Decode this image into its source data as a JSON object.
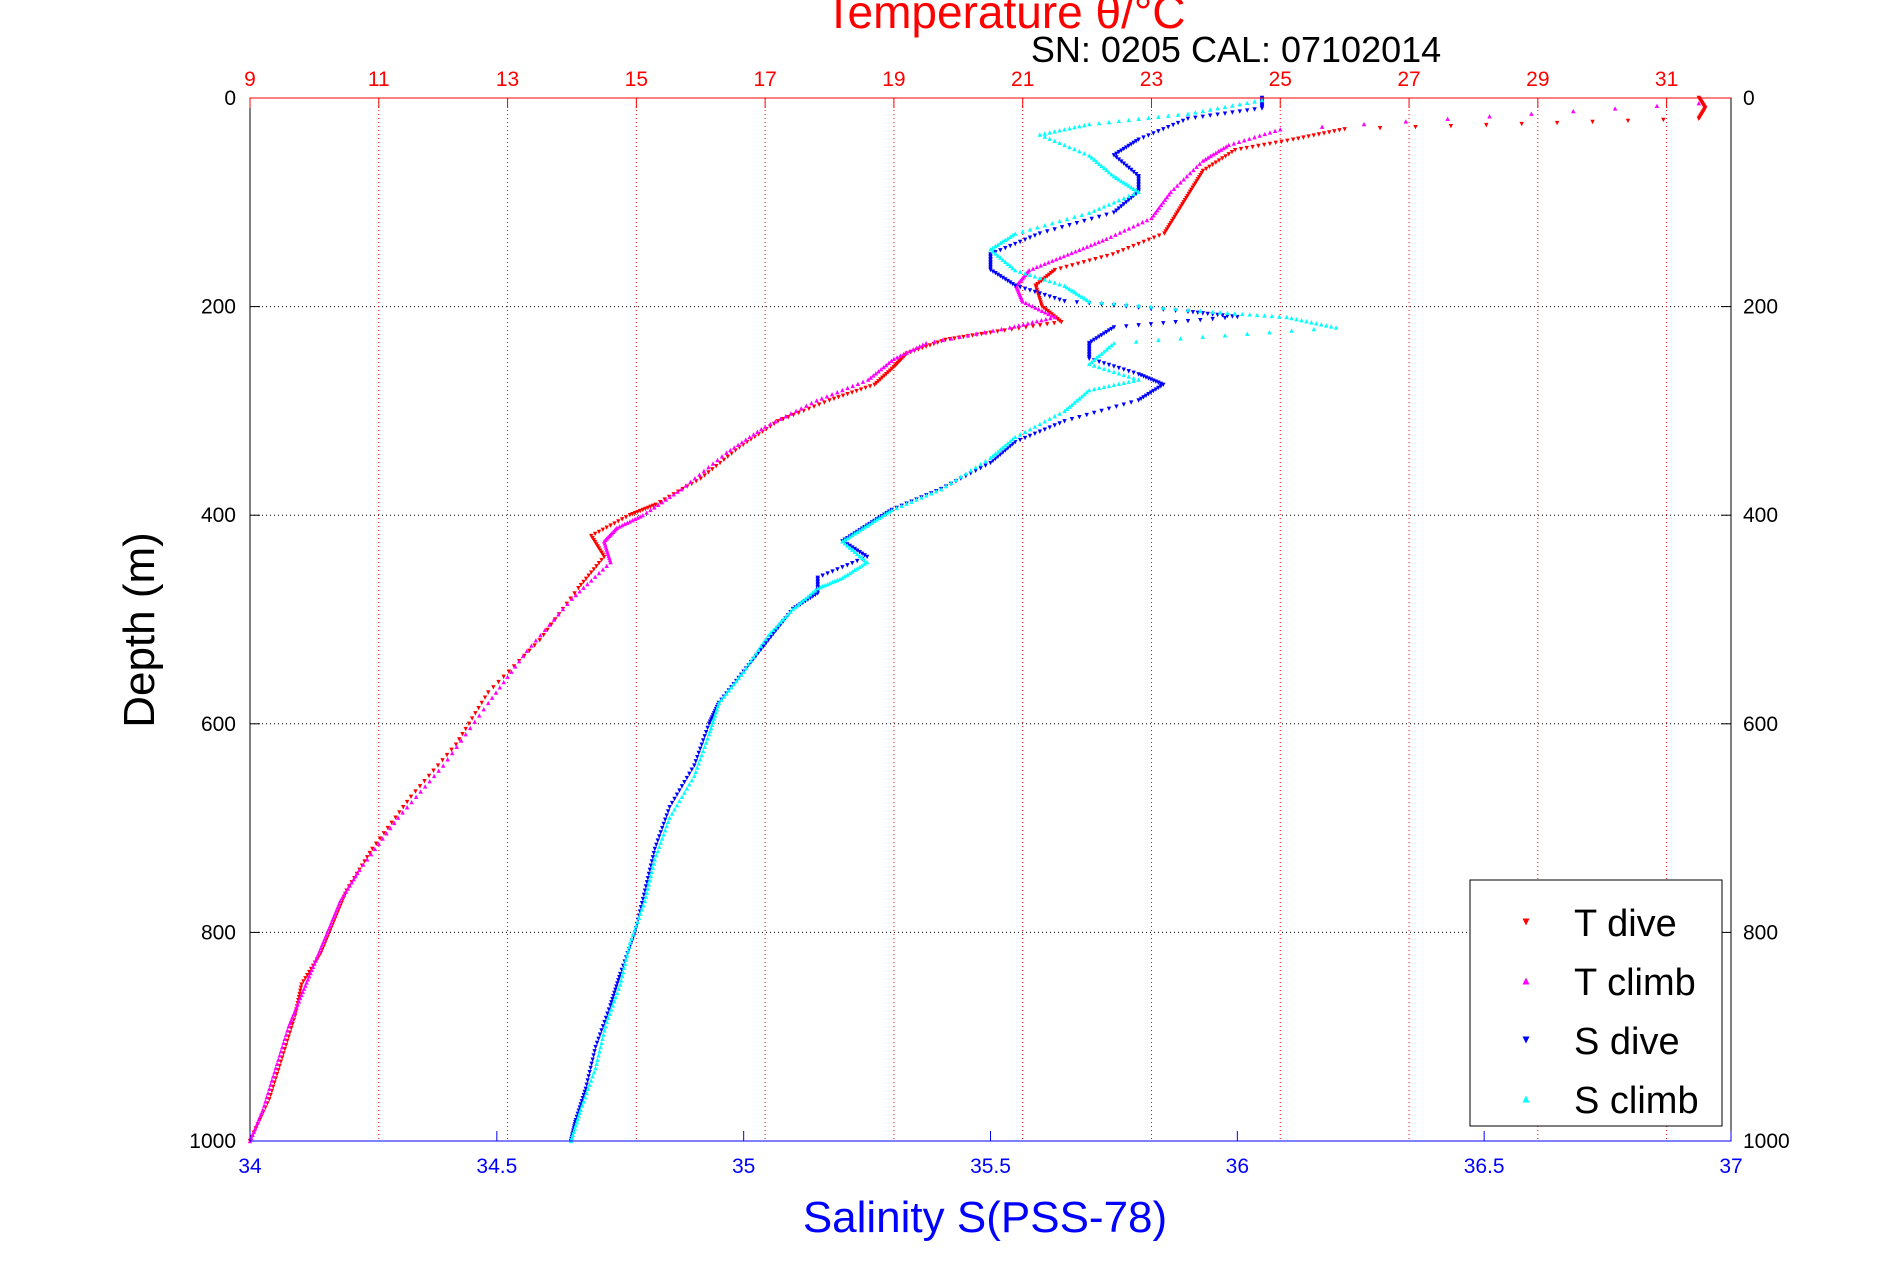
{
  "chart_data": {
    "type": "scatter",
    "title": "Temperature θ/°C",
    "subtitle": "SN: 0205  CAL: 07102014",
    "ylabel": "Depth (m)",
    "xlabel_bottom": "Salinity S(PSS-78)",
    "y_axis": {
      "min": 0,
      "max": 1000,
      "reversed": true,
      "ticks": [
        0,
        200,
        400,
        600,
        800,
        1000
      ]
    },
    "x_bottom": {
      "label": "Salinity S(PSS-78)",
      "min": 34,
      "max": 37,
      "ticks": [
        "34",
        "34.5",
        "35",
        "35.5",
        "36",
        "36.5",
        "37"
      ],
      "color": "#0000ff"
    },
    "x_top": {
      "label": "Temperature θ/°C",
      "min": 9,
      "max": 32,
      "ticks": [
        "9",
        "11",
        "13",
        "15",
        "17",
        "19",
        "21",
        "23",
        "25",
        "27",
        "29",
        "31"
      ],
      "color": "#ff0000"
    },
    "grid": true,
    "legend_position": "bottom-right",
    "series": [
      {
        "name": "T dive",
        "axis": "top",
        "color": "#ff0000",
        "marker": "triangle-down",
        "points": [
          [
            31.5,
            0
          ],
          [
            31.6,
            10
          ],
          [
            31.5,
            20
          ],
          [
            26.0,
            30
          ],
          [
            25.2,
            40
          ],
          [
            24.3,
            50
          ],
          [
            23.8,
            70
          ],
          [
            23.6,
            90
          ],
          [
            23.4,
            110
          ],
          [
            23.2,
            130
          ],
          [
            22.4,
            150
          ],
          [
            21.5,
            165
          ],
          [
            21.2,
            180
          ],
          [
            21.3,
            200
          ],
          [
            21.6,
            215
          ],
          [
            20.5,
            225
          ],
          [
            19.8,
            232
          ],
          [
            19.2,
            245
          ],
          [
            19.0,
            258
          ],
          [
            18.7,
            275
          ],
          [
            18.0,
            290
          ],
          [
            17.2,
            310
          ],
          [
            16.6,
            335
          ],
          [
            16.0,
            365
          ],
          [
            15.3,
            390
          ],
          [
            14.9,
            400
          ],
          [
            14.3,
            420
          ],
          [
            14.5,
            440
          ],
          [
            14.1,
            470
          ],
          [
            13.5,
            520
          ],
          [
            12.7,
            570
          ],
          [
            12.2,
            620
          ],
          [
            11.5,
            670
          ],
          [
            10.9,
            720
          ],
          [
            10.5,
            760
          ],
          [
            10.3,
            790
          ],
          [
            10.1,
            820
          ],
          [
            9.8,
            850
          ],
          [
            9.7,
            880
          ],
          [
            9.5,
            920
          ],
          [
            9.3,
            960
          ],
          [
            9.0,
            1000
          ]
        ]
      },
      {
        "name": "T climb",
        "axis": "top",
        "color": "#ff00ff",
        "marker": "triangle-up",
        "points": [
          [
            31.5,
            5
          ],
          [
            25.0,
            30
          ],
          [
            24.2,
            45
          ],
          [
            23.8,
            60
          ],
          [
            23.3,
            90
          ],
          [
            23.0,
            115
          ],
          [
            22.3,
            135
          ],
          [
            21.7,
            150
          ],
          [
            21.1,
            165
          ],
          [
            20.9,
            180
          ],
          [
            21.0,
            195
          ],
          [
            21.5,
            210
          ],
          [
            20.8,
            220
          ],
          [
            19.5,
            235
          ],
          [
            19.0,
            250
          ],
          [
            18.6,
            270
          ],
          [
            17.8,
            290
          ],
          [
            17.0,
            315
          ],
          [
            16.4,
            340
          ],
          [
            15.7,
            375
          ],
          [
            15.1,
            400
          ],
          [
            14.7,
            412
          ],
          [
            14.5,
            425
          ],
          [
            14.6,
            445
          ],
          [
            14.0,
            480
          ],
          [
            13.3,
            530
          ],
          [
            12.7,
            580
          ],
          [
            12.0,
            640
          ],
          [
            11.3,
            690
          ],
          [
            10.7,
            740
          ],
          [
            10.4,
            770
          ],
          [
            10.2,
            800
          ],
          [
            10.0,
            830
          ],
          [
            9.8,
            860
          ],
          [
            9.6,
            890
          ],
          [
            9.4,
            930
          ],
          [
            9.2,
            970
          ],
          [
            9.0,
            1000
          ]
        ]
      },
      {
        "name": "S dive",
        "axis": "bottom",
        "color": "#0000ff",
        "marker": "triangle-down",
        "points": [
          [
            36.05,
            0
          ],
          [
            36.05,
            10
          ],
          [
            35.9,
            20
          ],
          [
            35.8,
            40
          ],
          [
            35.75,
            55
          ],
          [
            35.8,
            75
          ],
          [
            35.8,
            90
          ],
          [
            35.75,
            110
          ],
          [
            35.6,
            130
          ],
          [
            35.5,
            150
          ],
          [
            35.5,
            165
          ],
          [
            35.55,
            180
          ],
          [
            35.65,
            195
          ],
          [
            35.9,
            205
          ],
          [
            36.0,
            210
          ],
          [
            35.75,
            220
          ],
          [
            35.7,
            235
          ],
          [
            35.7,
            250
          ],
          [
            35.8,
            265
          ],
          [
            35.85,
            275
          ],
          [
            35.8,
            290
          ],
          [
            35.65,
            310
          ],
          [
            35.55,
            330
          ],
          [
            35.5,
            350
          ],
          [
            35.4,
            375
          ],
          [
            35.3,
            395
          ],
          [
            35.25,
            410
          ],
          [
            35.2,
            425
          ],
          [
            35.25,
            440
          ],
          [
            35.15,
            460
          ],
          [
            35.15,
            475
          ],
          [
            35.1,
            490
          ],
          [
            35.05,
            520
          ],
          [
            35.0,
            550
          ],
          [
            34.95,
            580
          ],
          [
            34.93,
            600
          ],
          [
            34.9,
            640
          ],
          [
            34.85,
            680
          ],
          [
            34.82,
            720
          ],
          [
            34.8,
            760
          ],
          [
            34.78,
            800
          ],
          [
            34.75,
            840
          ],
          [
            34.73,
            870
          ],
          [
            34.7,
            910
          ],
          [
            34.68,
            950
          ],
          [
            34.66,
            980
          ],
          [
            34.65,
            1000
          ]
        ]
      },
      {
        "name": "S climb",
        "axis": "bottom",
        "color": "#00ffff",
        "marker": "triangle-up",
        "points": [
          [
            36.05,
            2
          ],
          [
            35.9,
            15
          ],
          [
            35.7,
            25
          ],
          [
            35.6,
            35
          ],
          [
            35.7,
            55
          ],
          [
            35.75,
            75
          ],
          [
            35.8,
            90
          ],
          [
            35.7,
            110
          ],
          [
            35.55,
            130
          ],
          [
            35.5,
            145
          ],
          [
            35.55,
            165
          ],
          [
            35.65,
            180
          ],
          [
            35.7,
            195
          ],
          [
            35.95,
            205
          ],
          [
            36.1,
            210
          ],
          [
            36.2,
            220
          ],
          [
            35.75,
            235
          ],
          [
            35.7,
            255
          ],
          [
            35.8,
            270
          ],
          [
            35.7,
            280
          ],
          [
            35.65,
            300
          ],
          [
            35.55,
            325
          ],
          [
            35.5,
            345
          ],
          [
            35.4,
            375
          ],
          [
            35.3,
            395
          ],
          [
            35.25,
            410
          ],
          [
            35.2,
            425
          ],
          [
            35.25,
            445
          ],
          [
            35.2,
            460
          ],
          [
            35.15,
            470
          ],
          [
            35.1,
            490
          ],
          [
            35.05,
            515
          ],
          [
            35.0,
            550
          ],
          [
            34.95,
            580
          ],
          [
            34.93,
            610
          ],
          [
            34.9,
            650
          ],
          [
            34.85,
            690
          ],
          [
            34.82,
            730
          ],
          [
            34.8,
            770
          ],
          [
            34.77,
            810
          ],
          [
            34.75,
            850
          ],
          [
            34.72,
            890
          ],
          [
            34.7,
            930
          ],
          [
            34.67,
            970
          ],
          [
            34.65,
            1000
          ]
        ]
      }
    ]
  }
}
